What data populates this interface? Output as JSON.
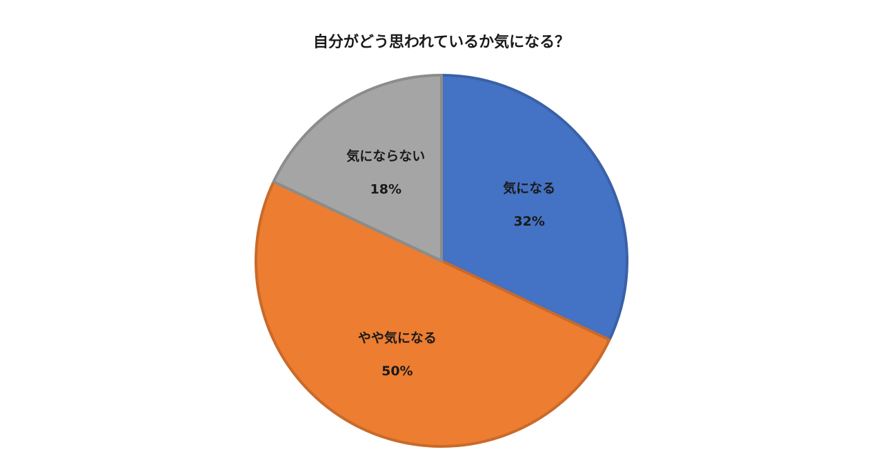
{
  "chart_data": {
    "type": "pie",
    "title": "自分がどう思われているか気になる？",
    "categories": [
      "気になる",
      "やや気になる",
      "気にならない"
    ],
    "values": [
      32,
      50,
      18
    ],
    "value_labels": [
      "32%",
      "50%",
      "18%"
    ],
    "colors": [
      "#4472c4",
      "#ed7d31",
      "#a5a5a5"
    ]
  }
}
